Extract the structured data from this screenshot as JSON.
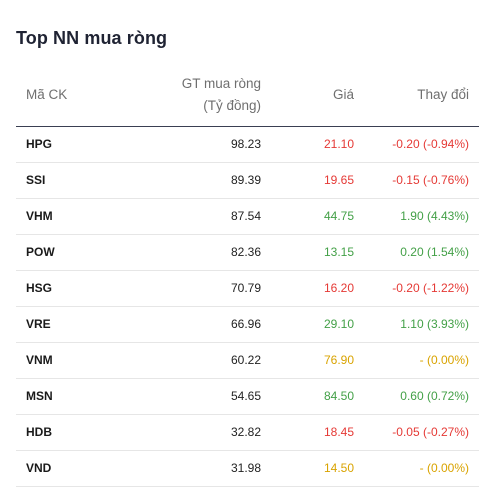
{
  "title": "Top NN mua ròng",
  "headers": {
    "code": "Mã CK",
    "gt_line1": "GT mua ròng",
    "gt_line2": "(Tỷ đồng)",
    "price": "Giá",
    "change": "Thay đổi"
  },
  "colors": {
    "down": "#e53935",
    "up": "#43a047",
    "reference": "#d9a300"
  },
  "rows": [
    {
      "code": "HPG",
      "value": "98.23",
      "price": "21.10",
      "change": "-0.20 (-0.94%)",
      "trend": "down"
    },
    {
      "code": "SSI",
      "value": "89.39",
      "price": "19.65",
      "change": "-0.15 (-0.76%)",
      "trend": "down"
    },
    {
      "code": "VHM",
      "value": "87.54",
      "price": "44.75",
      "change": "1.90 (4.43%)",
      "trend": "up"
    },
    {
      "code": "POW",
      "value": "82.36",
      "price": "13.15",
      "change": "0.20 (1.54%)",
      "trend": "up"
    },
    {
      "code": "HSG",
      "value": "70.79",
      "price": "16.20",
      "change": "-0.20 (-1.22%)",
      "trend": "down"
    },
    {
      "code": "VRE",
      "value": "66.96",
      "price": "29.10",
      "change": "1.10 (3.93%)",
      "trend": "up"
    },
    {
      "code": "VNM",
      "value": "60.22",
      "price": "76.90",
      "change": "- (0.00%)",
      "trend": "ref"
    },
    {
      "code": "MSN",
      "value": "54.65",
      "price": "84.50",
      "change": "0.60 (0.72%)",
      "trend": "up"
    },
    {
      "code": "HDB",
      "value": "32.82",
      "price": "18.45",
      "change": "-0.05 (-0.27%)",
      "trend": "down"
    },
    {
      "code": "VND",
      "value": "31.98",
      "price": "14.50",
      "change": "- (0.00%)",
      "trend": "ref"
    }
  ]
}
